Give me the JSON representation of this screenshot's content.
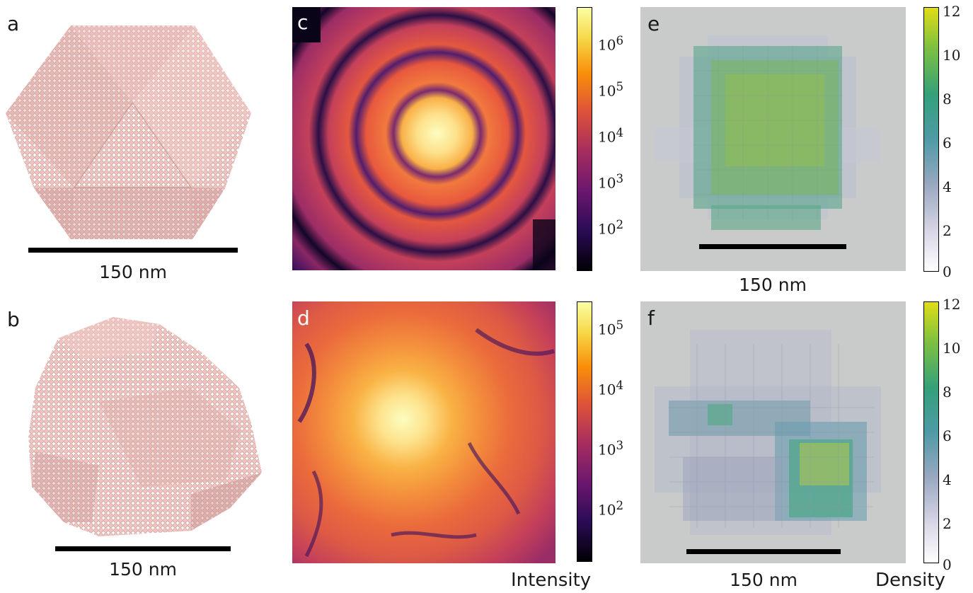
{
  "panels": {
    "a": {
      "letter": "a",
      "scalebar": "150 nm"
    },
    "b": {
      "letter": "b",
      "scalebar": "150 nm"
    },
    "c": {
      "letter": "c"
    },
    "d": {
      "letter": "d"
    },
    "e": {
      "letter": "e",
      "scalebar": "150 nm"
    },
    "f": {
      "letter": "f",
      "scalebar": "150 nm"
    }
  },
  "colorbars": {
    "intensity_c": {
      "ticks": [
        {
          "base": "10",
          "exp": "6"
        },
        {
          "base": "10",
          "exp": "5"
        },
        {
          "base": "10",
          "exp": "4"
        },
        {
          "base": "10",
          "exp": "3"
        },
        {
          "base": "10",
          "exp": "2"
        }
      ]
    },
    "intensity_d": {
      "ticks": [
        {
          "base": "10",
          "exp": "5"
        },
        {
          "base": "10",
          "exp": "4"
        },
        {
          "base": "10",
          "exp": "3"
        },
        {
          "base": "10",
          "exp": "2"
        }
      ]
    },
    "density_e": {
      "ticks": [
        "12",
        "10",
        "8",
        "6",
        "4",
        "2",
        "0"
      ]
    },
    "density_f": {
      "ticks": [
        "12",
        "10",
        "8",
        "6",
        "4",
        "2",
        "0"
      ]
    }
  },
  "labels": {
    "intensity": "Intensity",
    "density": "Density"
  },
  "colors": {
    "particle": "#e8b4b0",
    "background_3d": "#c9cbcb",
    "scalebar": "#000000"
  }
}
